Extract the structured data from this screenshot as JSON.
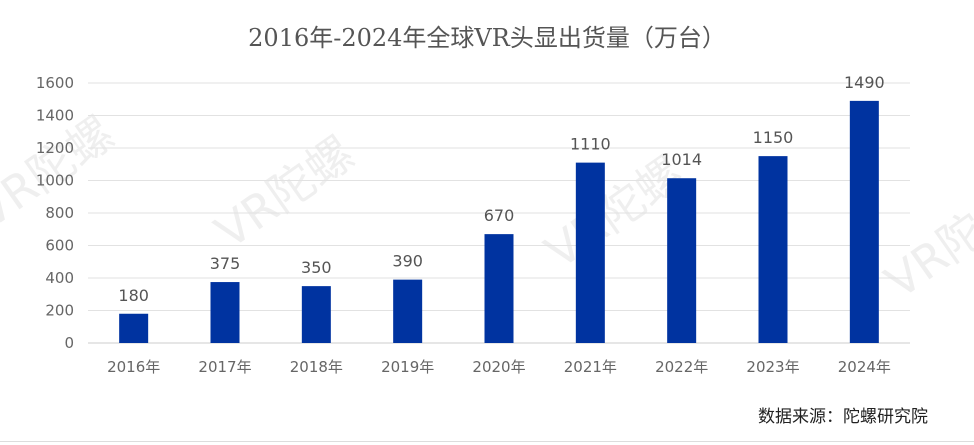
{
  "chart_data": {
    "type": "bar",
    "title": "2016年-2024年全球VR头显出货量（万台）",
    "categories": [
      "2016年",
      "2017年",
      "2018年",
      "2019年",
      "2020年",
      "2021年",
      "2022年",
      "2023年",
      "2024年"
    ],
    "values": [
      180,
      375,
      350,
      390,
      670,
      1110,
      1014,
      1150,
      1490
    ],
    "data_labels": [
      "180",
      "375",
      "350",
      "390",
      "670",
      "1110",
      "1014",
      "1150",
      "1490"
    ],
    "ylim": [
      0,
      1600
    ],
    "yticks": [
      0,
      200,
      400,
      600,
      800,
      1000,
      1200,
      1400,
      1600
    ],
    "ytick_labels": [
      "0",
      "200",
      "400",
      "600",
      "800",
      "1000",
      "1200",
      "1400",
      "1600"
    ],
    "grid": true,
    "legend": "none",
    "bar_color": "#0033a0"
  },
  "source": "数据来源：陀螺研究院",
  "watermark": "VR陀螺"
}
